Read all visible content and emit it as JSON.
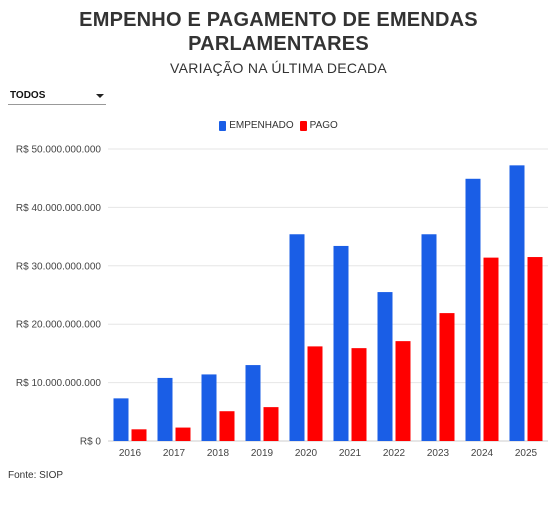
{
  "header": {
    "title": "EMPENHO E PAGAMENTO DE EMENDAS PARLAMENTARES",
    "subtitle": "VARIAÇÃO NA ÚLTIMA DECADA"
  },
  "filter": {
    "selected": "TODOS"
  },
  "source": "Fonte: SIOP",
  "colors": {
    "empenhado": "#1a5ee6",
    "pago": "#ff0000",
    "grid": "#e6e6e6"
  },
  "chart_data": {
    "type": "bar",
    "categories": [
      "2016",
      "2017",
      "2018",
      "2019",
      "2020",
      "2021",
      "2022",
      "2023",
      "2024",
      "2025"
    ],
    "series": [
      {
        "name": "EMPENHADO",
        "values": [
          7300000000,
          10800000000,
          11400000000,
          13000000000,
          35400000000,
          33400000000,
          25500000000,
          35400000000,
          44900000000,
          47200000000
        ]
      },
      {
        "name": "PAGO",
        "values": [
          2000000000,
          2300000000,
          5100000000,
          5800000000,
          16200000000,
          15900000000,
          17100000000,
          21900000000,
          31400000000,
          31500000000
        ]
      }
    ],
    "yticks": [
      {
        "value": 0,
        "label": "R$ 0"
      },
      {
        "value": 10000000000,
        "label": "R$ 10.000.000.000"
      },
      {
        "value": 20000000000,
        "label": "R$ 20.000.000.000"
      },
      {
        "value": 30000000000,
        "label": "R$ 30.000.000.000"
      },
      {
        "value": 40000000000,
        "label": "R$ 40.000.000.000"
      },
      {
        "value": 50000000000,
        "label": "R$ 50.000.000.000"
      }
    ],
    "ylim": [
      0,
      50000000000
    ],
    "legend_position": "top-center",
    "grid": true
  }
}
